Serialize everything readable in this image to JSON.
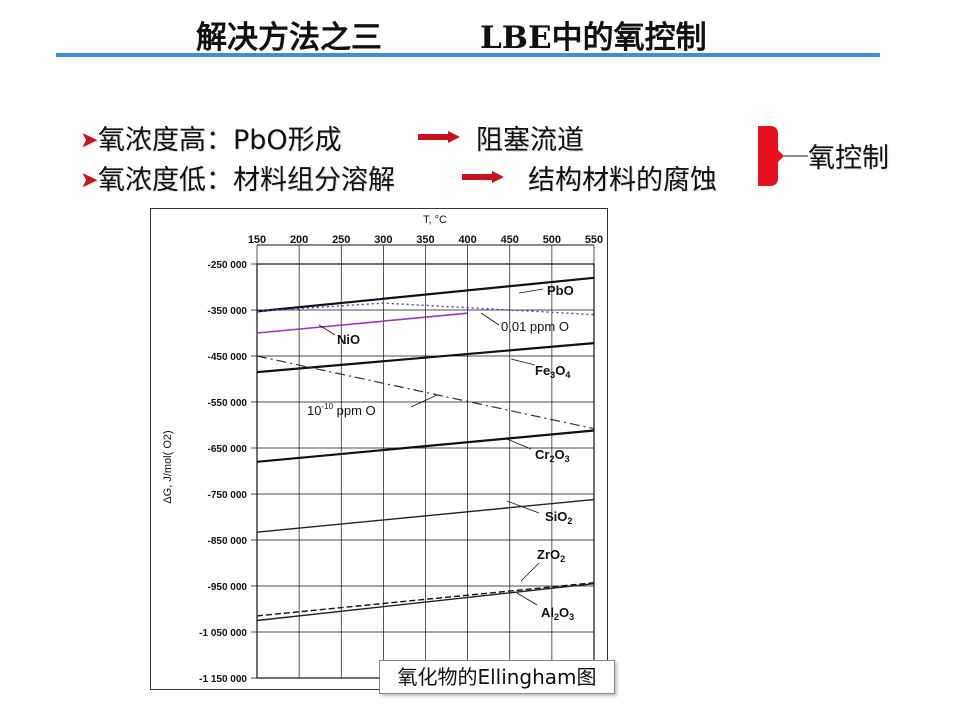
{
  "slide": {
    "title_left": "解决方法之三",
    "title_right": "LBE中的氧控制"
  },
  "bullets": [
    {
      "condition": "氧浓度高：PbO形成",
      "result": "阻塞流道"
    },
    {
      "condition": "氧浓度低：材料组分溶解",
      "result": "结构材料的腐蚀"
    }
  ],
  "bracket_label": "氧控制",
  "caption": "氧化物的Ellingham图",
  "colors": {
    "accent_rule": "#3b8fe0",
    "arrow": "#c8101e",
    "bullet": "#c8101e",
    "bracket": "#e8101e",
    "nio": "#9a3ab8",
    "ppm_dotted": "#4444cc"
  },
  "chart_data": {
    "type": "line",
    "xlabel": "T, °C",
    "ylabel": "ΔG, J/mol( O2)",
    "x_ticks": [
      150,
      200,
      250,
      300,
      350,
      400,
      450,
      500,
      550
    ],
    "y_ticks": [
      -250000,
      -350000,
      -450000,
      -550000,
      -650000,
      -750000,
      -850000,
      -950000,
      -1050000,
      -1150000
    ],
    "y_tick_labels": [
      "-250 000",
      "-350 000",
      "-450 000",
      "-550 000",
      "-650 000",
      "-750 000",
      "-850 000",
      "-950 000",
      "-1 050 000",
      "-1 150 000"
    ],
    "xlim": [
      150,
      550
    ],
    "ylim": [
      -1150000,
      -250000
    ],
    "series": [
      {
        "name": "PbO",
        "x": [
          150,
          550
        ],
        "y": [
          -353000,
          -280000
        ],
        "style": "solid-thick"
      },
      {
        "name": "0,01 ppm O",
        "x": [
          150,
          300,
          550
        ],
        "y": [
          -353000,
          -335000,
          -360000
        ],
        "style": "dotted"
      },
      {
        "name": "NiO",
        "x": [
          150,
          400
        ],
        "y": [
          -400000,
          -357000
        ],
        "style": "solid-purple"
      },
      {
        "name": "Fe3O4",
        "x": [
          150,
          550
        ],
        "y": [
          -485000,
          -422000
        ],
        "style": "solid-thick"
      },
      {
        "name": "10-10 ppm O",
        "x": [
          150,
          550
        ],
        "y": [
          -450000,
          -608000
        ],
        "style": "dashdot"
      },
      {
        "name": "Cr2O3",
        "x": [
          150,
          550
        ],
        "y": [
          -680000,
          -612000
        ],
        "style": "solid-thick"
      },
      {
        "name": "SiO2",
        "x": [
          150,
          550
        ],
        "y": [
          -833000,
          -762000
        ],
        "style": "solid"
      },
      {
        "name": "ZrO2",
        "x": [
          150,
          550
        ],
        "y": [
          -1015000,
          -943000
        ],
        "style": "dashed"
      },
      {
        "name": "Al2O3",
        "x": [
          150,
          550
        ],
        "y": [
          -1025000,
          -945000
        ],
        "style": "solid"
      }
    ],
    "annotations": {
      "pbo": "PbO",
      "ppm01": "0,01 ppm O",
      "nio": "NiO",
      "fe_main": "Fe",
      "fe_sub1": "3",
      "fe_o": "O",
      "fe_sub2": "4",
      "ppm10_base": "10",
      "ppm10_exp": "-10",
      "ppm10_rest": " ppm O",
      "cr_main": "Cr",
      "cr_sub1": "2",
      "cr_o": "O",
      "cr_sub2": "3",
      "si_main": "SiO",
      "si_sub": "2",
      "zr_main": "ZrO",
      "zr_sub": "2",
      "al_main": "Al",
      "al_sub1": "2",
      "al_o": "O",
      "al_sub2": "3"
    }
  }
}
